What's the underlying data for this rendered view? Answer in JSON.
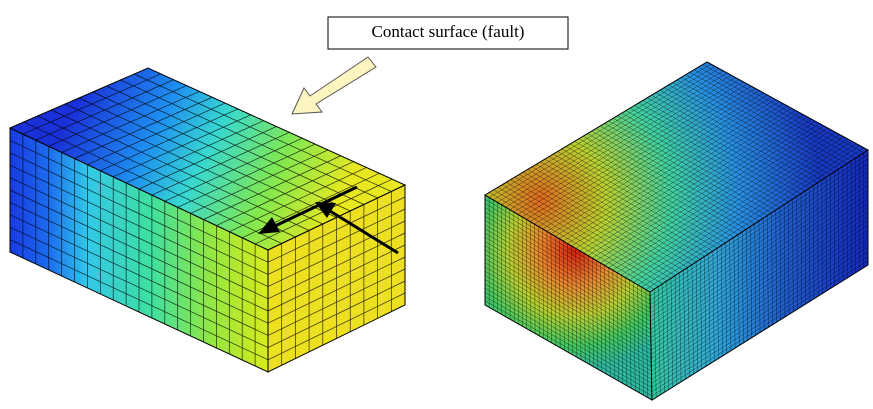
{
  "callout": {
    "label": "Contact surface (fault)"
  }
}
